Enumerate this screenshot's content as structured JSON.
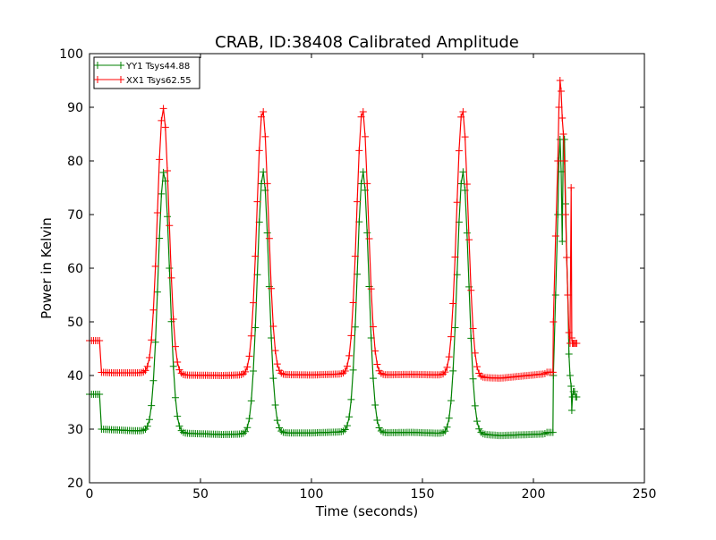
{
  "chart_data": {
    "type": "line",
    "title": "CRAB, ID:38408 Calibrated Amplitude",
    "xlabel": "Time (seconds)",
    "ylabel": "Power in Kelvin",
    "xlim": [
      0,
      250
    ],
    "ylim": [
      20,
      100
    ],
    "xticks": [
      0,
      50,
      100,
      150,
      200,
      250
    ],
    "yticks": [
      20,
      30,
      40,
      50,
      60,
      70,
      80,
      90,
      100
    ],
    "grid": false,
    "legend_position": "top-left",
    "marker": "+",
    "series": [
      {
        "name": "YY1 Tsys44.88",
        "color": "#008000",
        "baseline_points": [
          [
            0,
            36.5
          ],
          [
            4.5,
            36.5
          ],
          [
            5,
            30
          ],
          [
            10,
            29.9
          ],
          [
            20,
            29.7
          ],
          [
            26,
            29.7
          ],
          [
            38,
            29.3
          ],
          [
            60,
            29
          ],
          [
            70,
            29.1
          ],
          [
            82,
            29.3
          ],
          [
            100,
            29.3
          ],
          [
            115,
            29.5
          ],
          [
            120,
            29.4
          ],
          [
            128,
            29.3
          ],
          [
            145,
            29.4
          ],
          [
            160,
            29.2
          ],
          [
            172,
            29.2
          ],
          [
            185,
            28.8
          ],
          [
            205,
            29.1
          ],
          [
            206,
            29.4
          ]
        ],
        "peaks": [
          {
            "center": 33.5,
            "height": 78,
            "width": 2.6
          },
          {
            "center": 78.2,
            "height": 78,
            "width": 2.6
          },
          {
            "center": 123.2,
            "height": 78,
            "width": 2.6
          },
          {
            "center": 168.2,
            "height": 78,
            "width": 2.6
          }
        ],
        "tail_points": [
          [
            209,
            40
          ],
          [
            210,
            55
          ],
          [
            211,
            70
          ],
          [
            211.5,
            80
          ],
          [
            212,
            84
          ],
          [
            212.5,
            78
          ],
          [
            213,
            65
          ],
          [
            213.5,
            85
          ],
          [
            214,
            84
          ],
          [
            214.5,
            72
          ],
          [
            215,
            62
          ],
          [
            215.5,
            55
          ],
          [
            216,
            44
          ],
          [
            216.5,
            40
          ],
          [
            217,
            38
          ],
          [
            217.3,
            33.5
          ],
          [
            217.6,
            36
          ],
          [
            218,
            37
          ],
          [
            218.5,
            37
          ],
          [
            219,
            36
          ],
          [
            219.5,
            36
          ]
        ]
      },
      {
        "name": "XX1 Tsys62.55",
        "color": "#ff0000",
        "baseline_points": [
          [
            0,
            46.5
          ],
          [
            4.5,
            46.5
          ],
          [
            5,
            40.6
          ],
          [
            10,
            40.5
          ],
          [
            20,
            40.5
          ],
          [
            26,
            40.5
          ],
          [
            38,
            40.1
          ],
          [
            60,
            40
          ],
          [
            75,
            40.2
          ],
          [
            82,
            40.2
          ],
          [
            100,
            40.1
          ],
          [
            115,
            40.3
          ],
          [
            120,
            40.2
          ],
          [
            128,
            40.1
          ],
          [
            145,
            40.2
          ],
          [
            160,
            40.1
          ],
          [
            172,
            39.7
          ],
          [
            185,
            39.5
          ],
          [
            205,
            40.3
          ],
          [
            206,
            40.6
          ]
        ],
        "peaks": [
          {
            "center": 33.2,
            "height": 89.8,
            "width": 2.6
          },
          {
            "center": 78.0,
            "height": 89.5,
            "width": 2.6
          },
          {
            "center": 123.0,
            "height": 89.5,
            "width": 2.6
          },
          {
            "center": 168.0,
            "height": 89.5,
            "width": 2.6
          }
        ],
        "tail_points": [
          [
            209,
            50
          ],
          [
            210,
            66
          ],
          [
            211,
            80
          ],
          [
            211.5,
            90
          ],
          [
            212,
            95
          ],
          [
            212.5,
            93
          ],
          [
            213,
            88
          ],
          [
            213.5,
            85
          ],
          [
            214,
            80
          ],
          [
            214.5,
            70
          ],
          [
            215,
            62
          ],
          [
            215.5,
            55
          ],
          [
            216,
            48
          ],
          [
            216.5,
            46
          ],
          [
            217,
            75
          ],
          [
            217.3,
            47
          ],
          [
            217.6,
            46
          ],
          [
            218,
            46
          ],
          [
            218.5,
            46
          ],
          [
            219,
            46
          ],
          [
            219.5,
            46
          ]
        ]
      }
    ]
  }
}
